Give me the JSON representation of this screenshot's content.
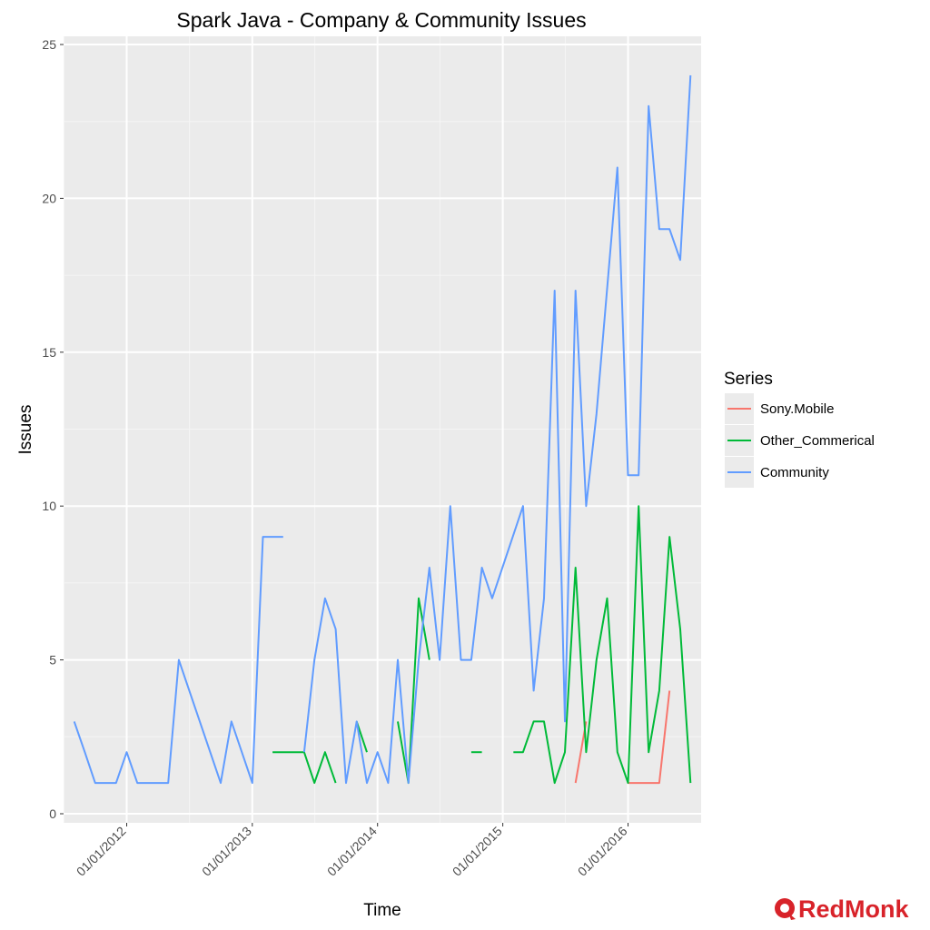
{
  "chart_data": {
    "type": "line",
    "title": "Spark Java - Company & Community Issues",
    "xlabel": "Time",
    "ylabel": "Issues",
    "xlim": [
      "2011-07-01",
      "2016-08-01"
    ],
    "ylim": [
      0,
      25
    ],
    "y_ticks": [
      0,
      5,
      10,
      15,
      20,
      25
    ],
    "x_ticks": [
      {
        "date": "2012-01-01",
        "label": "01/01/2012"
      },
      {
        "date": "2013-01-01",
        "label": "01/01/2013"
      },
      {
        "date": "2014-01-01",
        "label": "01/01/2014"
      },
      {
        "date": "2015-01-01",
        "label": "01/01/2015"
      },
      {
        "date": "2016-01-01",
        "label": "01/01/2016"
      }
    ],
    "grid": true,
    "legend": {
      "title": "Series",
      "position": "right"
    },
    "series": [
      {
        "name": "Sony.Mobile",
        "color": "#f8766d",
        "segments": [
          [
            [
              "2015-08-01",
              1
            ],
            [
              "2015-09-01",
              3
            ]
          ],
          [
            [
              "2016-01-01",
              1
            ],
            [
              "2016-02-01",
              1
            ],
            [
              "2016-03-01",
              1
            ],
            [
              "2016-04-01",
              1
            ],
            [
              "2016-05-01",
              4
            ]
          ]
        ]
      },
      {
        "name": "Other_Commerical",
        "color": "#00ba38",
        "segments": [
          [
            [
              "2013-03-01",
              2
            ],
            [
              "2013-04-01",
              2
            ],
            [
              "2013-05-01",
              2
            ],
            [
              "2013-06-01",
              2
            ],
            [
              "2013-07-01",
              1
            ],
            [
              "2013-08-01",
              2
            ],
            [
              "2013-09-01",
              1
            ]
          ],
          [
            [
              "2013-11-01",
              3
            ],
            [
              "2013-12-01",
              2
            ]
          ],
          [
            [
              "2014-03-01",
              3
            ],
            [
              "2014-04-01",
              1
            ],
            [
              "2014-05-01",
              7
            ],
            [
              "2014-06-01",
              5
            ]
          ],
          [
            [
              "2014-10-01",
              2
            ],
            [
              "2014-11-01",
              2
            ]
          ],
          [
            [
              "2015-02-01",
              2
            ],
            [
              "2015-03-01",
              2
            ],
            [
              "2015-04-01",
              3
            ],
            [
              "2015-05-01",
              3
            ],
            [
              "2015-06-01",
              1
            ],
            [
              "2015-07-01",
              2
            ],
            [
              "2015-08-01",
              8
            ],
            [
              "2015-09-01",
              2
            ],
            [
              "2015-10-01",
              5
            ],
            [
              "2015-11-01",
              7
            ],
            [
              "2015-12-01",
              2
            ],
            [
              "2016-01-01",
              1
            ],
            [
              "2016-02-01",
              10
            ],
            [
              "2016-03-01",
              2
            ],
            [
              "2016-04-01",
              4
            ],
            [
              "2016-05-01",
              9
            ],
            [
              "2016-06-01",
              6
            ],
            [
              "2016-07-01",
              1
            ]
          ]
        ]
      },
      {
        "name": "Community",
        "color": "#619cff",
        "segments": [
          [
            [
              "2011-08-01",
              3
            ],
            [
              "2011-09-01",
              2
            ],
            [
              "2011-10-01",
              1
            ],
            [
              "2011-11-01",
              1
            ],
            [
              "2011-12-01",
              1
            ],
            [
              "2012-01-01",
              2
            ],
            [
              "2012-02-01",
              1
            ],
            [
              "2012-03-01",
              1
            ],
            [
              "2012-04-01",
              1
            ],
            [
              "2012-05-01",
              1
            ],
            [
              "2012-06-01",
              5
            ],
            [
              "2012-10-01",
              1
            ],
            [
              "2012-11-01",
              3
            ],
            [
              "2013-01-01",
              1
            ],
            [
              "2013-02-01",
              9
            ],
            [
              "2013-03-01",
              9
            ],
            [
              "2013-04-01",
              9
            ]
          ],
          [
            [
              "2013-06-01",
              2
            ],
            [
              "2013-07-01",
              5
            ],
            [
              "2013-08-01",
              7
            ],
            [
              "2013-09-01",
              6
            ],
            [
              "2013-10-01",
              1
            ],
            [
              "2013-11-01",
              3
            ],
            [
              "2013-12-01",
              1
            ],
            [
              "2014-01-01",
              2
            ],
            [
              "2014-02-01",
              1
            ],
            [
              "2014-03-01",
              5
            ],
            [
              "2014-04-01",
              1
            ],
            [
              "2014-05-01",
              5
            ],
            [
              "2014-06-01",
              8
            ],
            [
              "2014-07-01",
              5
            ],
            [
              "2014-08-01",
              10
            ],
            [
              "2014-09-01",
              5
            ],
            [
              "2014-10-01",
              5
            ],
            [
              "2014-11-01",
              8
            ],
            [
              "2014-12-01",
              7
            ],
            [
              "2015-03-01",
              10
            ],
            [
              "2015-04-01",
              4
            ],
            [
              "2015-05-01",
              7
            ],
            [
              "2015-06-01",
              17
            ],
            [
              "2015-07-01",
              3
            ],
            [
              "2015-08-01",
              17
            ],
            [
              "2015-09-01",
              10
            ],
            [
              "2015-10-01",
              13
            ],
            [
              "2015-12-01",
              21
            ],
            [
              "2016-01-01",
              11
            ],
            [
              "2016-02-01",
              11
            ],
            [
              "2016-03-01",
              23
            ],
            [
              "2016-04-01",
              19
            ],
            [
              "2016-05-01",
              19
            ],
            [
              "2016-06-01",
              18
            ],
            [
              "2016-07-01",
              24
            ]
          ]
        ]
      }
    ]
  },
  "brand": {
    "text": "RedMonk",
    "color": "#d8232a",
    "icon": "redmonk-logo-icon"
  }
}
